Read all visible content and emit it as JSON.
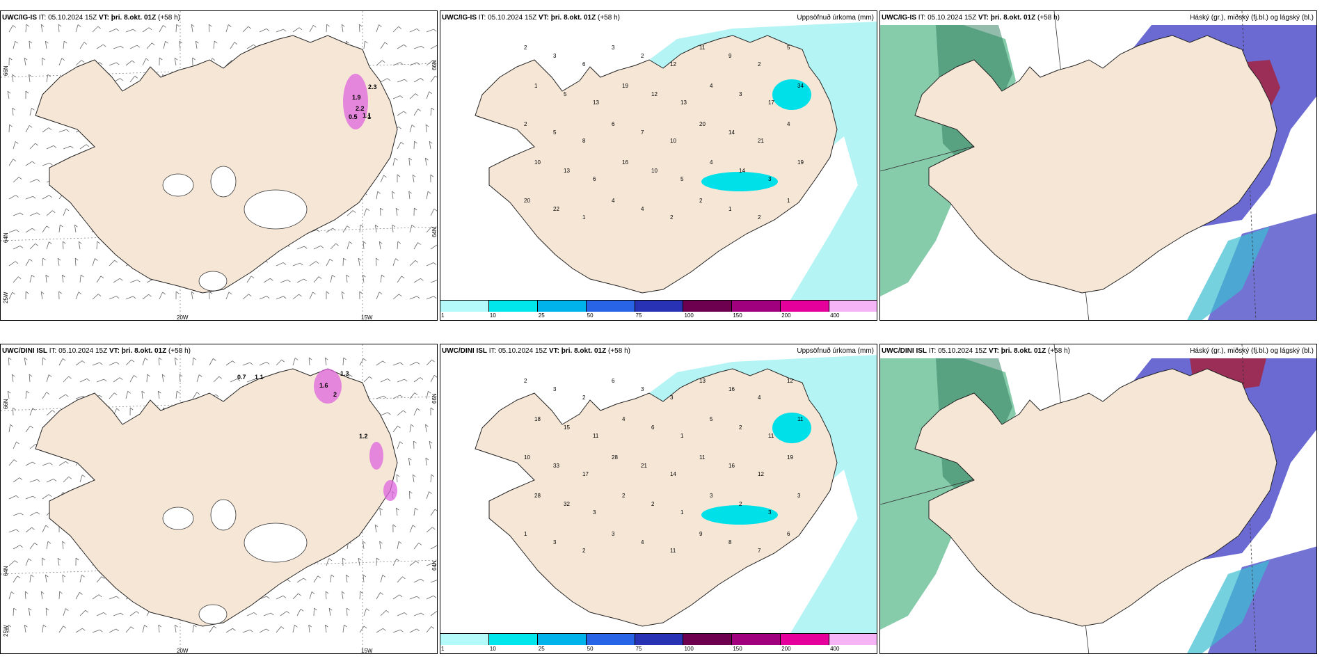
{
  "rows": [
    {
      "model": "UWC/IG-IS",
      "it_label": "IT: 05.10.2024 15Z",
      "vt_label": "VT: þri. 8.okt. 01Z",
      "lead": "(+58 h)",
      "left": {
        "lon_labels": [
          "20W",
          "15W"
        ],
        "lat_labels": [
          "66N",
          "64N",
          "25W",
          "66N",
          "64N"
        ],
        "precip_values": [
          "2.3",
          "1.9",
          "2.2",
          "1.1",
          "0.5",
          "1"
        ]
      },
      "middle": {
        "title": "Uppsöfnuð úrkoma (mm)",
        "values": [
          "2",
          "3",
          "6",
          "3",
          "2",
          "12",
          "11",
          "9",
          "2",
          "5",
          "1",
          "5",
          "13",
          "19",
          "12",
          "13",
          "4",
          "3",
          "17",
          "34",
          "2",
          "5",
          "8",
          "6",
          "7",
          "10",
          "20",
          "14",
          "21",
          "4",
          "10",
          "13",
          "6",
          "16",
          "10",
          "5",
          "4",
          "14",
          "3",
          "19",
          "20",
          "22",
          "1",
          "4",
          "4",
          "2",
          "2",
          "1",
          "2",
          "1"
        ]
      },
      "right": {
        "title": "Háský (gr.), miðský (fj.bl.) og lágský (bl.)"
      }
    },
    {
      "model": "UWC/DINI ISL",
      "it_label": "IT: 05.10.2024 15Z",
      "vt_label": "VT: þri. 8.okt. 01Z",
      "lead": "(+58 h)",
      "left": {
        "lon_labels": [
          "20W",
          "15W"
        ],
        "lat_labels": [
          "66N",
          "64N",
          "25W",
          "66N",
          "64N"
        ],
        "precip_values": [
          "0.7",
          "1.1",
          "1.3",
          "1.6",
          "2",
          "1.2"
        ]
      },
      "middle": {
        "title": "Uppsöfnuð úrkoma (mm)",
        "values": [
          "2",
          "3",
          "2",
          "6",
          "3",
          "3",
          "13",
          "16",
          "4",
          "12",
          "18",
          "15",
          "11",
          "4",
          "6",
          "1",
          "5",
          "2",
          "11",
          "11",
          "10",
          "33",
          "17",
          "28",
          "21",
          "14",
          "11",
          "16",
          "12",
          "19",
          "28",
          "32",
          "3",
          "2",
          "2",
          "1",
          "3",
          "2",
          "3",
          "3",
          "1",
          "3",
          "2",
          "3",
          "4",
          "11",
          "9",
          "8",
          "7",
          "6"
        ]
      },
      "right": {
        "title": "Háský (gr.), miðský (fj.bl.) og lágský (bl.)"
      }
    }
  ],
  "legend": {
    "ticks": [
      "1",
      "10",
      "25",
      "50",
      "75",
      "100",
      "150",
      "200",
      "400"
    ],
    "colors": [
      "#b4fafa",
      "#00e6eb",
      "#00b4eb",
      "#2864e6",
      "#2832b4",
      "#6e0050",
      "#a0007d",
      "#e6009b",
      "#f5b4f5"
    ]
  },
  "colors": {
    "land": "#f5e6d6",
    "precip": "#b4f4f4",
    "precip_strong": "#00e0e8",
    "low_cloud": "#5a5acd",
    "mid_cloud": "#3cbed2",
    "high_cloud": "#23a064",
    "convective": "#a02848",
    "snow_pink": "#dd66dd"
  }
}
